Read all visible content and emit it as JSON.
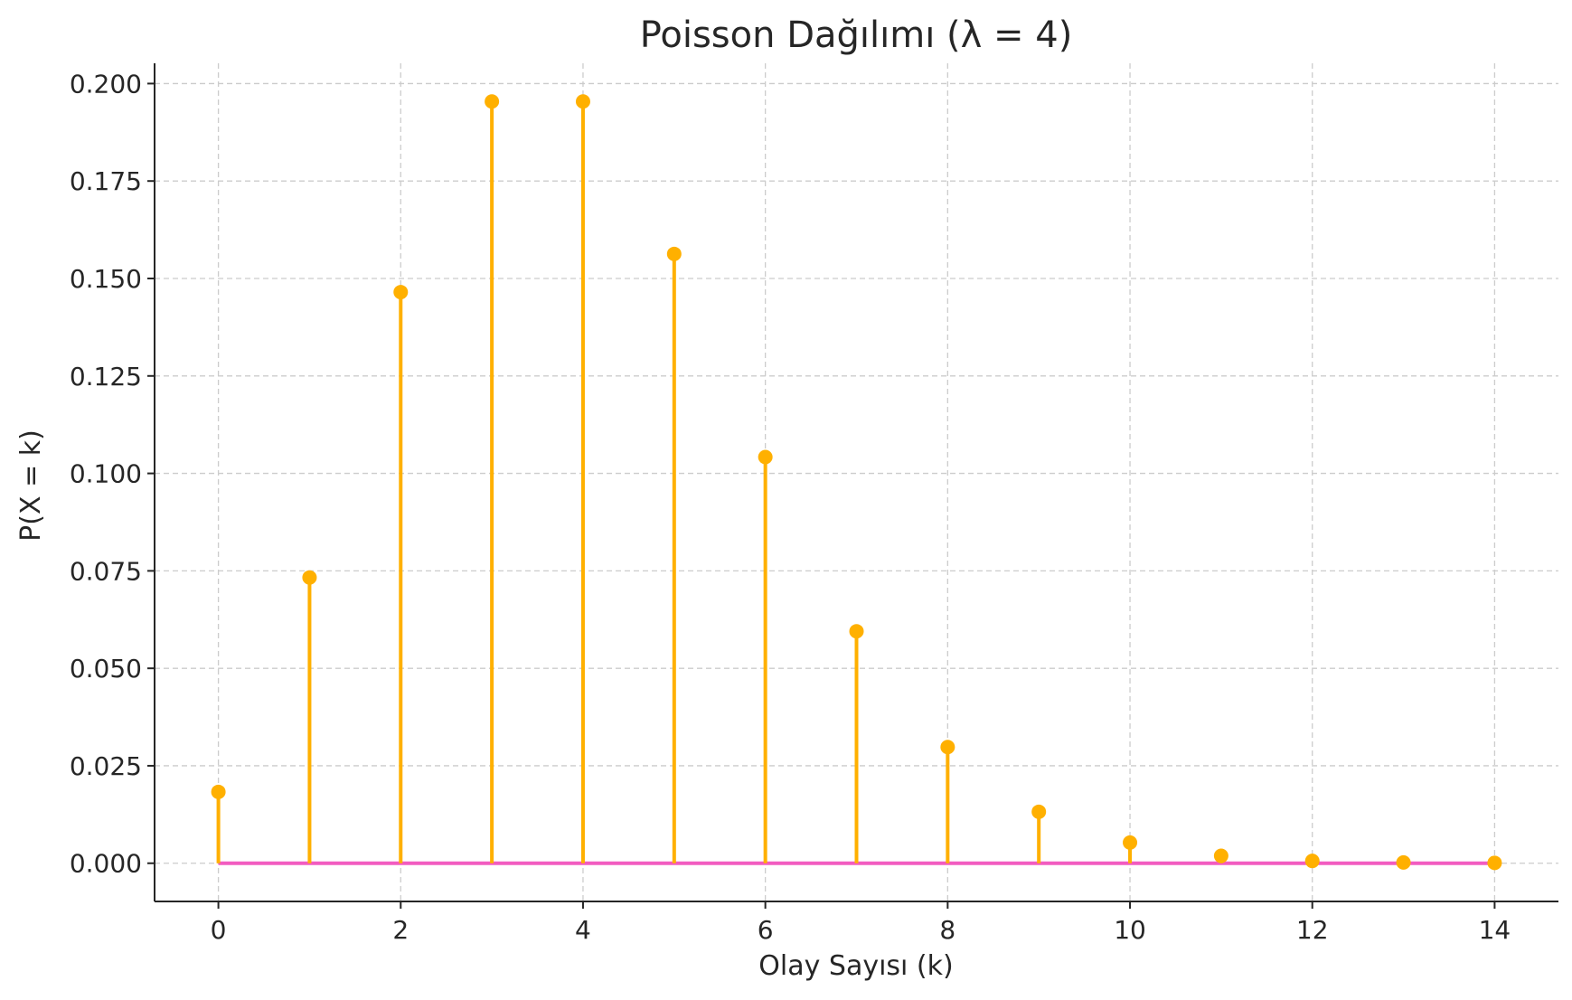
{
  "chart_data": {
    "type": "stem",
    "title": "Poisson Dağılımı (λ = 4)",
    "xlabel": "Olay Sayısı (k)",
    "ylabel": "P(X = k)",
    "x": [
      0,
      1,
      2,
      3,
      4,
      5,
      6,
      7,
      8,
      9,
      10,
      11,
      12,
      13,
      14
    ],
    "y": [
      0.0183,
      0.0733,
      0.1465,
      0.1954,
      0.1954,
      0.1563,
      0.1042,
      0.0595,
      0.0298,
      0.0132,
      0.0053,
      0.0019,
      0.0006,
      0.0002,
      0.0001
    ],
    "xlim": [
      -0.7,
      14.7
    ],
    "ylim": [
      -0.0098,
      0.2052
    ],
    "x_ticks": [
      0,
      2,
      4,
      6,
      8,
      10,
      12,
      14
    ],
    "x_tick_labels": [
      "0",
      "2",
      "4",
      "6",
      "8",
      "10",
      "12",
      "14"
    ],
    "y_ticks": [
      0,
      0.025,
      0.05,
      0.075,
      0.1,
      0.125,
      0.15,
      0.175,
      0.2
    ],
    "y_tick_labels": [
      "0.000",
      "0.025",
      "0.050",
      "0.075",
      "0.100",
      "0.125",
      "0.150",
      "0.175",
      "0.200"
    ],
    "grid": true,
    "grid_style": "dashed",
    "colors": {
      "stem": "#FFB000",
      "baseline": "#F25CC0",
      "grid": "#cccccc",
      "axis": "#262626",
      "text": "#262626"
    }
  }
}
